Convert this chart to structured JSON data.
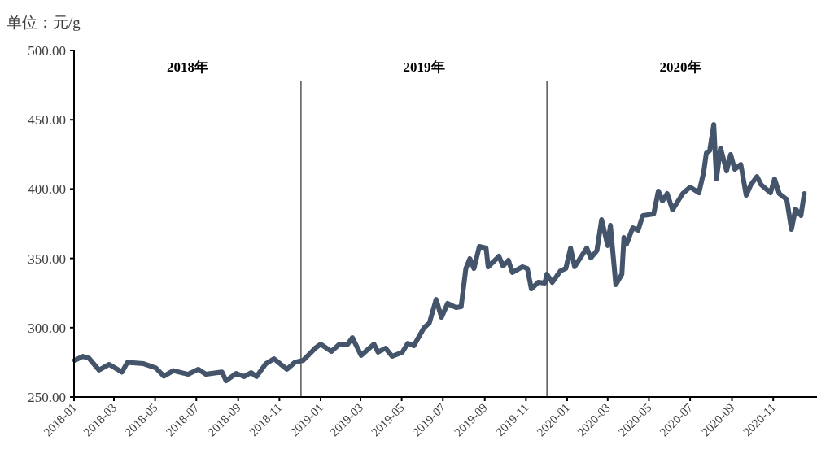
{
  "chart_data": {
    "type": "line",
    "ylabel": "单位：元/g",
    "annotations": [
      "2018年",
      "2019年",
      "2020年"
    ],
    "series": [
      {
        "color": "#44546a",
        "x": [
          "2018-01-02",
          "2018-01-14",
          "2018-01-23",
          "2018-02-07",
          "2018-02-22",
          "2018-03-13",
          "2018-03-21",
          "2018-04-14",
          "2018-05-02",
          "2018-05-14",
          "2018-05-28",
          "2018-06-19",
          "2018-07-04",
          "2018-07-15",
          "2018-08-08",
          "2018-08-14",
          "2018-08-29",
          "2018-09-10",
          "2018-09-20",
          "2018-09-28",
          "2018-10-12",
          "2018-10-24",
          "2018-11-12",
          "2018-11-24",
          "2018-12-06",
          "2018-12-24",
          "2019-01-01",
          "2019-01-17",
          "2019-01-29",
          "2019-02-10",
          "2019-02-17",
          "2019-03-02",
          "2019-03-21",
          "2019-03-27",
          "2019-04-07",
          "2019-04-17",
          "2019-05-02",
          "2019-05-10",
          "2019-05-19",
          "2019-06-03",
          "2019-06-11",
          "2019-06-21",
          "2019-06-29",
          "2019-07-08",
          "2019-07-20",
          "2019-07-28",
          "2019-08-04",
          "2019-08-10",
          "2019-08-16",
          "2019-08-24",
          "2019-09-03",
          "2019-09-06",
          "2019-09-22",
          "2019-09-28",
          "2019-10-06",
          "2019-10-12",
          "2019-10-27",
          "2019-11-03",
          "2019-11-09",
          "2019-11-19",
          "2019-11-29",
          "2019-12-02",
          "2019-12-10",
          "2019-12-22",
          "2019-12-30",
          "2020-01-06",
          "2020-01-12",
          "2020-01-30",
          "2020-02-05",
          "2020-02-14",
          "2020-02-21",
          "2020-03-01",
          "2020-03-05",
          "2020-03-13",
          "2020-03-22",
          "2020-03-25",
          "2020-03-29",
          "2020-04-07",
          "2020-04-15",
          "2020-04-22",
          "2020-05-08",
          "2020-05-15",
          "2020-05-21",
          "2020-05-28",
          "2020-06-05",
          "2020-06-20",
          "2020-07-01",
          "2020-07-14",
          "2020-07-21",
          "2020-07-25",
          "2020-07-30",
          "2020-08-05",
          "2020-08-09",
          "2020-08-15",
          "2020-08-24",
          "2020-08-30",
          "2020-09-05",
          "2020-09-14",
          "2020-09-22",
          "2020-09-29",
          "2020-10-08",
          "2020-10-14",
          "2020-10-28",
          "2020-11-03",
          "2020-11-10",
          "2020-11-21",
          "2020-11-28",
          "2020-12-04",
          "2020-12-12",
          "2020-12-17"
        ],
        "values": [
          276.4,
          279.3,
          278,
          269.4,
          273.5,
          268,
          275,
          274,
          271,
          265,
          269,
          266.4,
          270,
          266.4,
          268,
          261.7,
          267,
          264.7,
          267.6,
          264.7,
          274,
          277.6,
          270,
          275,
          276.4,
          285.2,
          288.1,
          282.9,
          288.1,
          288,
          292.8,
          280,
          288.1,
          282.3,
          285.2,
          279.3,
          282.3,
          288.7,
          287,
          299.9,
          303.4,
          320.4,
          307.5,
          317.5,
          314.6,
          315.1,
          342.7,
          349.8,
          342.7,
          358.6,
          357.4,
          343.9,
          351.5,
          344.5,
          348.6,
          339.8,
          343.9,
          342.7,
          328,
          332.7,
          332.2,
          338.6,
          332.7,
          341,
          342.7,
          357.4,
          343.9,
          357.4,
          350.3,
          355.6,
          377.9,
          359.2,
          373.8,
          331,
          338.6,
          365,
          360.3,
          372,
          370.3,
          380.9,
          382,
          398.5,
          391.4,
          396.7,
          385,
          396.7,
          401.4,
          397.3,
          412,
          426,
          427.8,
          446.6,
          407.3,
          429.6,
          413.1,
          424.9,
          414.3,
          417.8,
          395.5,
          403.2,
          409,
          403.2,
          397.3,
          407.3,
          396.7,
          392.6,
          370.9,
          385.6,
          380.9,
          396.7
        ]
      }
    ],
    "xlim": [
      "2018-01-01",
      "2020-12-31"
    ],
    "xticks": [
      "2018-01",
      "2018-03",
      "2018-05",
      "2018-07",
      "2018-09",
      "2018-11",
      "2019-01",
      "2019-03",
      "2019-05",
      "2019-07",
      "2019-09",
      "2019-11",
      "2020-01",
      "2020-03",
      "2020-05",
      "2020-07",
      "2020-09",
      "2020-11"
    ],
    "ylim": [
      250,
      500
    ],
    "yticks": [
      {
        "value": 250,
        "label": "250.00"
      },
      {
        "value": 300,
        "label": "300.00"
      },
      {
        "value": 350,
        "label": "350.00"
      },
      {
        "value": 400,
        "label": "400.00"
      },
      {
        "value": 450,
        "label": "450.00"
      },
      {
        "value": 500,
        "label": "500.00"
      }
    ],
    "ref_lines": [
      {
        "axis": "x",
        "value": "2018-12-03",
        "color": "#000000"
      },
      {
        "axis": "x",
        "value": "2019-12-02",
        "color": "#000000"
      }
    ],
    "grid": false,
    "marker": "none",
    "line_style": "solid"
  }
}
